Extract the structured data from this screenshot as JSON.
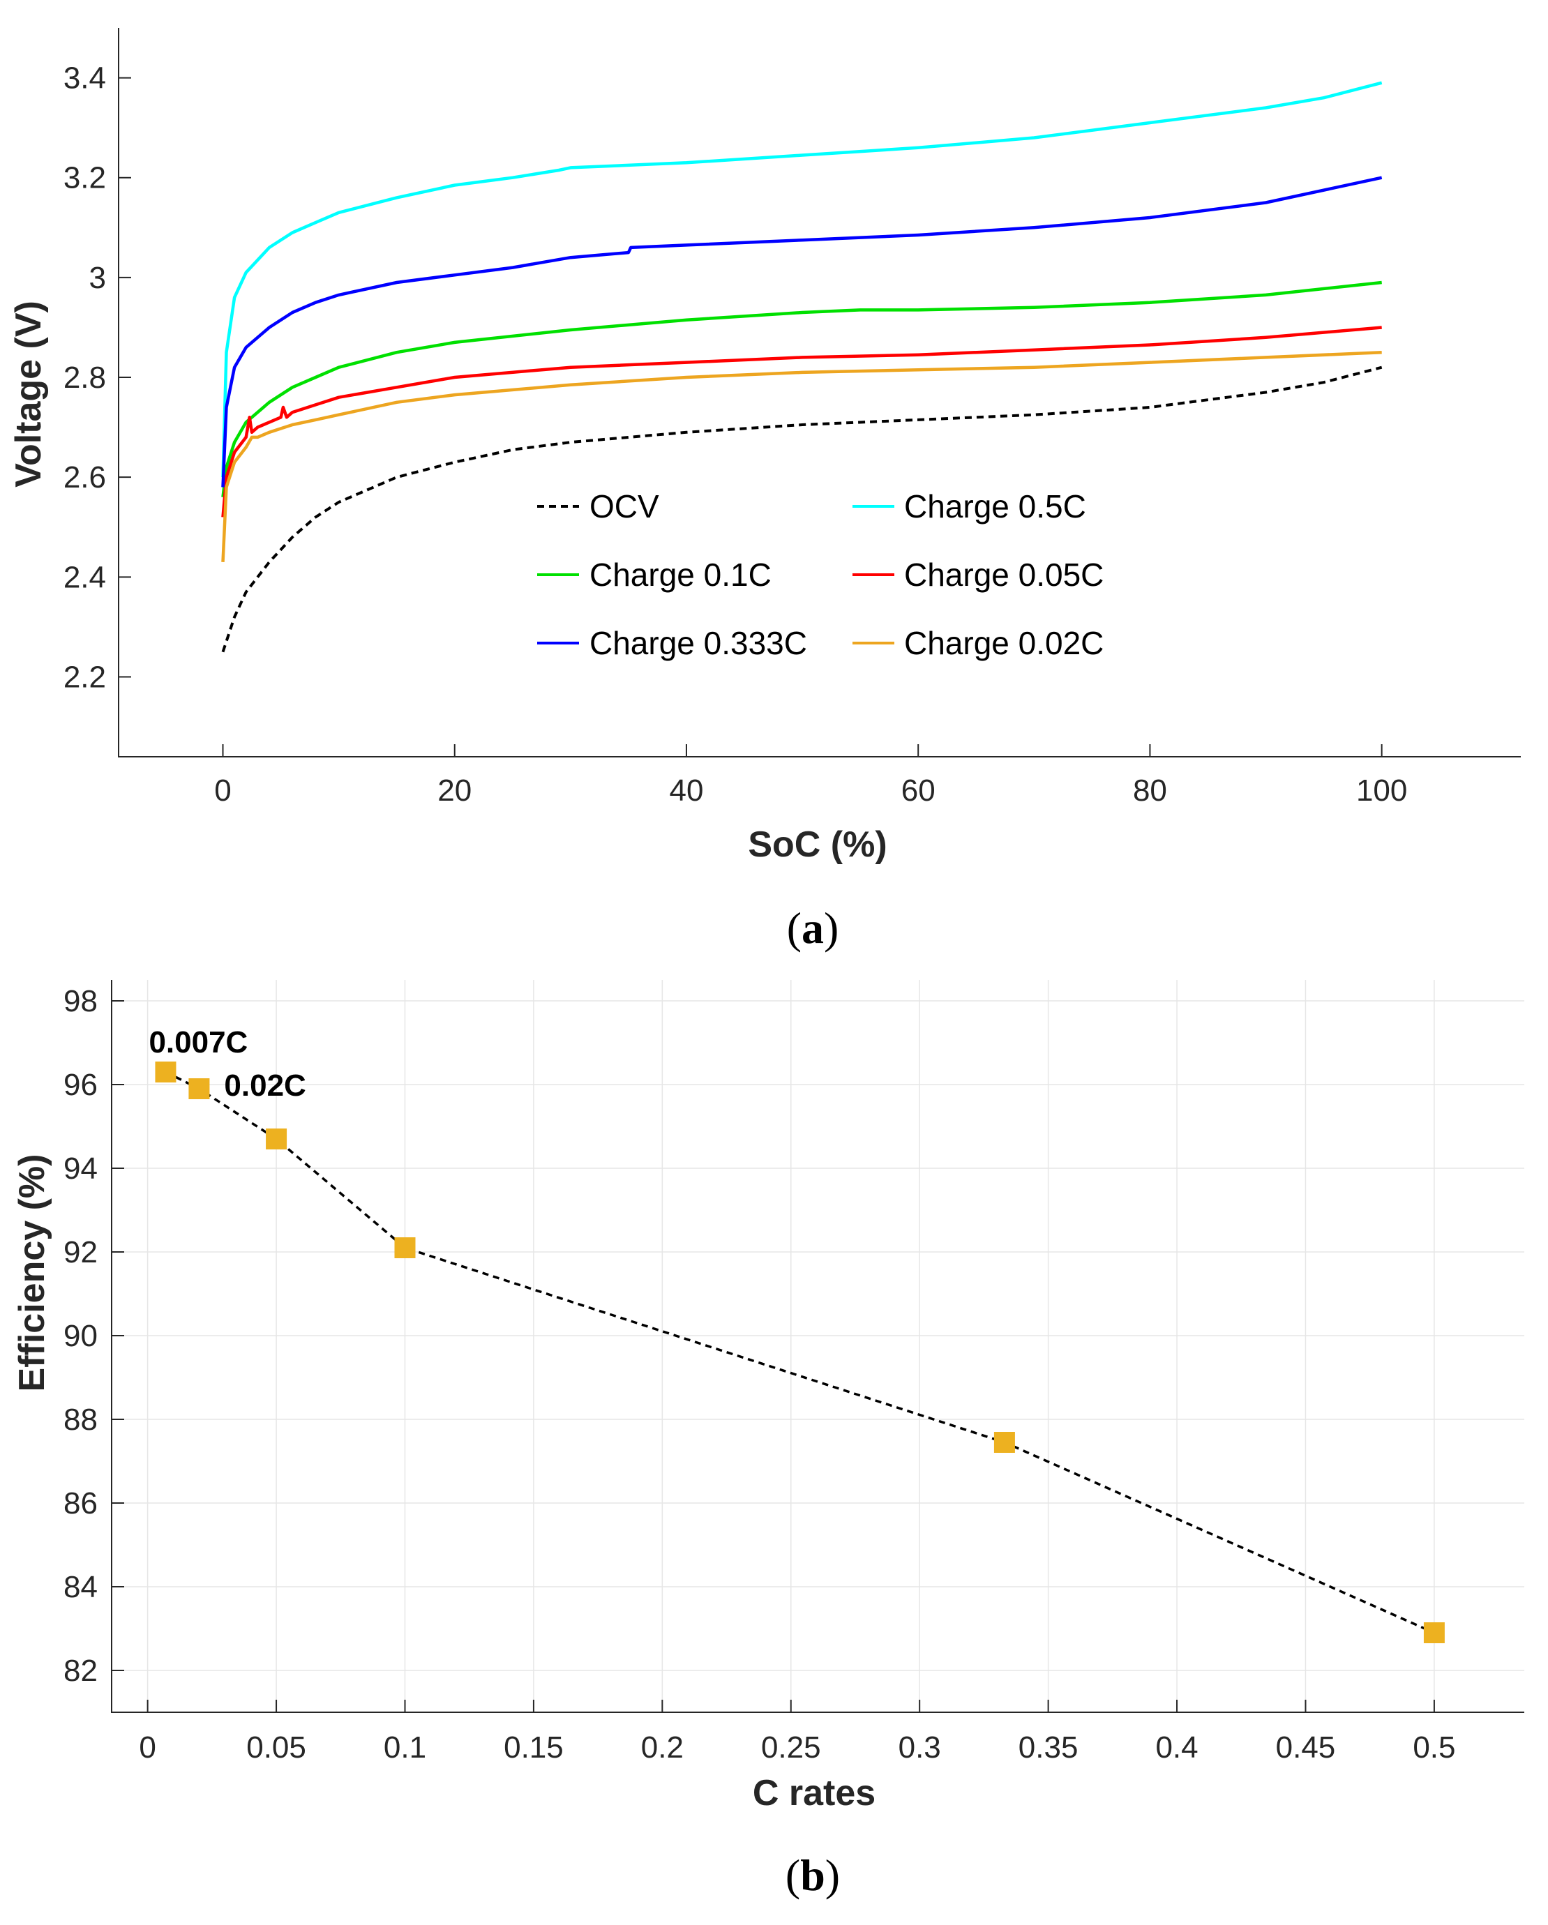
{
  "chart_data": [
    {
      "panel": "a",
      "type": "line",
      "panel_label": {
        "open": "(",
        "letter": "a",
        "close": ")"
      },
      "xlabel": "SoC (%)",
      "ylabel": "Voltage (V)",
      "xlim": [
        -9,
        112
      ],
      "ylim": [
        2.04,
        3.5
      ],
      "xticks": [
        0,
        20,
        40,
        60,
        80,
        100
      ],
      "yticks": [
        2.2,
        2.4,
        2.6,
        2.8,
        3,
        3.2,
        3.4
      ],
      "grid": false,
      "legend_position": "center",
      "series": [
        {
          "name": "OCV",
          "color": "#000000",
          "dash": true,
          "x": [
            0,
            1,
            2,
            4,
            6,
            8,
            10,
            15,
            20,
            25,
            30,
            40,
            50,
            60,
            70,
            80,
            85,
            90,
            95,
            100
          ],
          "y": [
            2.25,
            2.32,
            2.37,
            2.43,
            2.48,
            2.52,
            2.55,
            2.6,
            2.63,
            2.655,
            2.67,
            2.69,
            2.705,
            2.715,
            2.725,
            2.74,
            2.755,
            2.77,
            2.79,
            2.82
          ]
        },
        {
          "name": "Charge 0.5C",
          "color": "#00FFFF",
          "dash": false,
          "x": [
            0,
            0.3,
            1,
            2,
            4,
            6,
            8,
            10,
            15,
            20,
            25,
            29,
            30,
            40,
            50,
            60,
            70,
            80,
            90,
            95,
            100
          ],
          "y": [
            2.6,
            2.85,
            2.96,
            3.01,
            3.06,
            3.09,
            3.11,
            3.13,
            3.16,
            3.185,
            3.2,
            3.215,
            3.22,
            3.23,
            3.245,
            3.26,
            3.28,
            3.31,
            3.34,
            3.36,
            3.39
          ]
        },
        {
          "name": "Charge 0.1C",
          "color": "#00E000",
          "dash": false,
          "x": [
            0,
            0.3,
            1,
            2,
            4,
            6,
            8,
            10,
            15,
            20,
            30,
            40,
            50,
            55,
            60,
            70,
            80,
            90,
            100
          ],
          "y": [
            2.56,
            2.62,
            2.67,
            2.71,
            2.75,
            2.78,
            2.8,
            2.82,
            2.85,
            2.87,
            2.895,
            2.915,
            2.93,
            2.935,
            2.935,
            2.94,
            2.95,
            2.965,
            2.99
          ]
        },
        {
          "name": "Charge 0.05C",
          "color": "#FF0000",
          "dash": false,
          "x": [
            0,
            0.3,
            1,
            2,
            2.3,
            2.5,
            3,
            4,
            5,
            5.2,
            5.5,
            6,
            8,
            10,
            15,
            20,
            30,
            40,
            50,
            60,
            70,
            80,
            90,
            100
          ],
          "y": [
            2.52,
            2.6,
            2.65,
            2.68,
            2.72,
            2.69,
            2.7,
            2.71,
            2.72,
            2.74,
            2.72,
            2.73,
            2.745,
            2.76,
            2.78,
            2.8,
            2.82,
            2.83,
            2.84,
            2.845,
            2.855,
            2.865,
            2.88,
            2.9
          ]
        },
        {
          "name": "Charge 0.333C",
          "color": "#0000FF",
          "dash": false,
          "x": [
            0,
            0.3,
            1,
            2,
            4,
            6,
            8,
            10,
            15,
            20,
            25,
            30,
            35,
            35.2,
            40,
            50,
            60,
            70,
            80,
            90,
            100
          ],
          "y": [
            2.58,
            2.74,
            2.82,
            2.86,
            2.9,
            2.93,
            2.95,
            2.965,
            2.99,
            3.005,
            3.02,
            3.04,
            3.05,
            3.06,
            3.065,
            3.075,
            3.085,
            3.1,
            3.12,
            3.15,
            3.2
          ]
        },
        {
          "name": "Charge 0.02C",
          "color": "#EDA520",
          "dash": false,
          "x": [
            0,
            0.3,
            1,
            2,
            2.5,
            3,
            4,
            6,
            8,
            10,
            15,
            20,
            30,
            40,
            50,
            60,
            70,
            80,
            90,
            100
          ],
          "y": [
            2.43,
            2.58,
            2.63,
            2.66,
            2.68,
            2.68,
            2.69,
            2.705,
            2.715,
            2.725,
            2.75,
            2.765,
            2.785,
            2.8,
            2.81,
            2.815,
            2.82,
            2.83,
            2.84,
            2.85
          ]
        }
      ]
    },
    {
      "panel": "b",
      "type": "scatter",
      "panel_label": {
        "open": "(",
        "letter": "b",
        "close": ")"
      },
      "xlabel": "C rates",
      "ylabel": "Efficiency (%)",
      "xlim": [
        -0.014,
        0.535
      ],
      "ylim": [
        81,
        98.5
      ],
      "xticks": [
        0,
        0.05,
        0.1,
        0.15,
        0.2,
        0.25,
        0.3,
        0.35,
        0.4,
        0.45,
        0.5
      ],
      "xtick_labels": [
        "0",
        "0.05",
        "0.1",
        "0.15",
        "0.2",
        "0.25",
        "0.3",
        "0.35",
        "0.4",
        "0.45",
        "0.5"
      ],
      "yticks": [
        82,
        84,
        86,
        88,
        90,
        92,
        94,
        96,
        98
      ],
      "grid": true,
      "marker": "square",
      "marker_color": "#EDB120",
      "line_color": "#000000",
      "line_dash": true,
      "x": [
        0.007,
        0.02,
        0.05,
        0.1,
        0.333,
        0.5
      ],
      "y": [
        96.3,
        95.9,
        94.7,
        92.1,
        87.45,
        82.9
      ],
      "annotations": [
        {
          "text": "0.007C",
          "x": 0.007,
          "y": 96.3
        },
        {
          "text": "0.02C",
          "x": 0.02,
          "y": 95.9
        }
      ]
    }
  ]
}
